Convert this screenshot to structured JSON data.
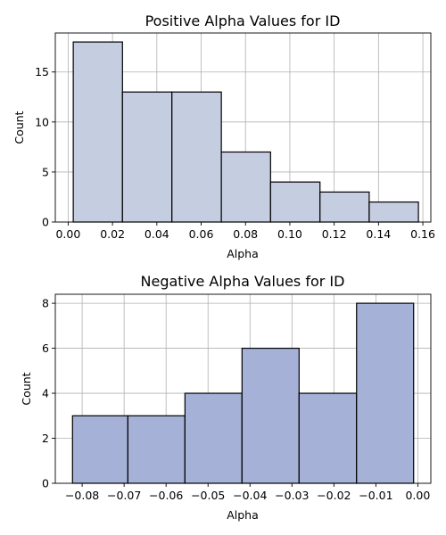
{
  "chart_data": [
    {
      "type": "bar",
      "title": "Positive Alpha Values for ID",
      "xlabel": "Alpha",
      "ylabel": "Count",
      "xlim": [
        -0.0058,
        0.1636
      ],
      "ylim": [
        0,
        18.9
      ],
      "xticks": [
        0.0,
        0.02,
        0.04,
        0.06,
        0.08,
        0.1,
        0.12,
        0.14,
        0.16
      ],
      "xtick_labels": [
        "0.00",
        "0.02",
        "0.04",
        "0.06",
        "0.08",
        "0.10",
        "0.12",
        "0.14",
        "0.16"
      ],
      "yticks": [
        0,
        5,
        10,
        15
      ],
      "ytick_labels": [
        "0",
        "5",
        "10",
        "15"
      ],
      "bin_edges": [
        0.0023,
        0.0245,
        0.0468,
        0.0691,
        0.0913,
        0.1136,
        0.1358,
        0.158
      ],
      "values": [
        18,
        13,
        13,
        7,
        4,
        3,
        2
      ],
      "color": "#c5cde1",
      "edge_color": "#000000",
      "grid": true
    },
    {
      "type": "bar",
      "title": "Negative Alpha Values for ID",
      "xlabel": "Alpha",
      "ylabel": "Count",
      "xlim": [
        -0.0864,
        0.0031
      ],
      "ylim": [
        0,
        8.4
      ],
      "xticks": [
        -0.08,
        -0.07,
        -0.06,
        -0.05,
        -0.04,
        -0.03,
        -0.02,
        -0.01,
        0.0
      ],
      "xtick_labels": [
        "−0.08",
        "−0.07",
        "−0.06",
        "−0.05",
        "−0.04",
        "−0.03",
        "−0.02",
        "−0.01",
        "0.00"
      ],
      "yticks": [
        0,
        2,
        4,
        6,
        8
      ],
      "ytick_labels": [
        "0",
        "2",
        "4",
        "6",
        "8"
      ],
      "bin_edges": [
        -0.0823,
        -0.0691,
        -0.0555,
        -0.0419,
        -0.0283,
        -0.0146,
        -0.001
      ],
      "values": [
        3,
        3,
        4,
        6,
        4,
        8
      ],
      "color": "#a5b1d6",
      "edge_color": "#000000",
      "grid": true
    }
  ]
}
